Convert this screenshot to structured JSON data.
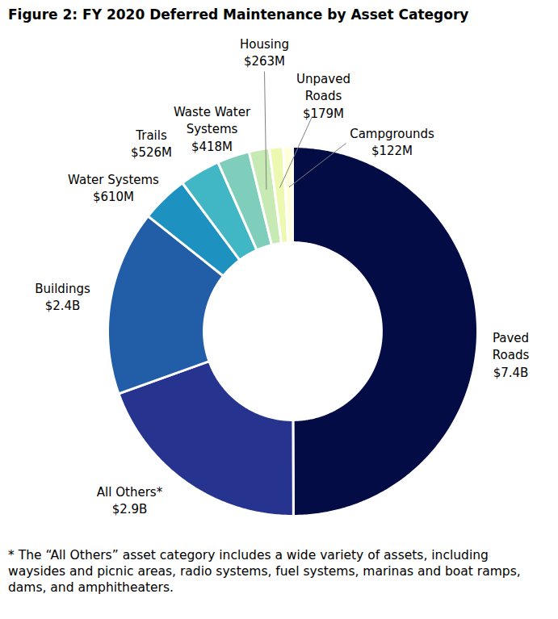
{
  "chart_data": {
    "type": "donut",
    "title": "Figure 2: FY 2020 Deferred Maintenance by Asset Category",
    "categories": [
      "Paved Roads",
      "All Others*",
      "Buildings",
      "Water Systems",
      "Trails",
      "Waste Water Systems",
      "Housing",
      "Unpaved Roads",
      "Campgrounds"
    ],
    "values": [
      7400,
      2900,
      2400,
      610,
      526,
      418,
      263,
      179,
      122
    ],
    "value_labels": [
      "$7.4B",
      "$2.9B",
      "$2.4B",
      "$610M",
      "$526M",
      "$418M",
      "$263M",
      "$179M",
      "$122M"
    ],
    "colors": [
      "#040c45",
      "#27348f",
      "#225ea8",
      "#1d91c0",
      "#41b6c4",
      "#7fcdbb",
      "#c7e9b4",
      "#edf8b1",
      "#ffffd9"
    ],
    "data_labels": true,
    "footnote": "* The “All Others” asset category includes a wide variety of assets, including waysides and picnic areas, radio systems, fuel systems, marinas and boat ramps, dams, and amphitheaters."
  }
}
